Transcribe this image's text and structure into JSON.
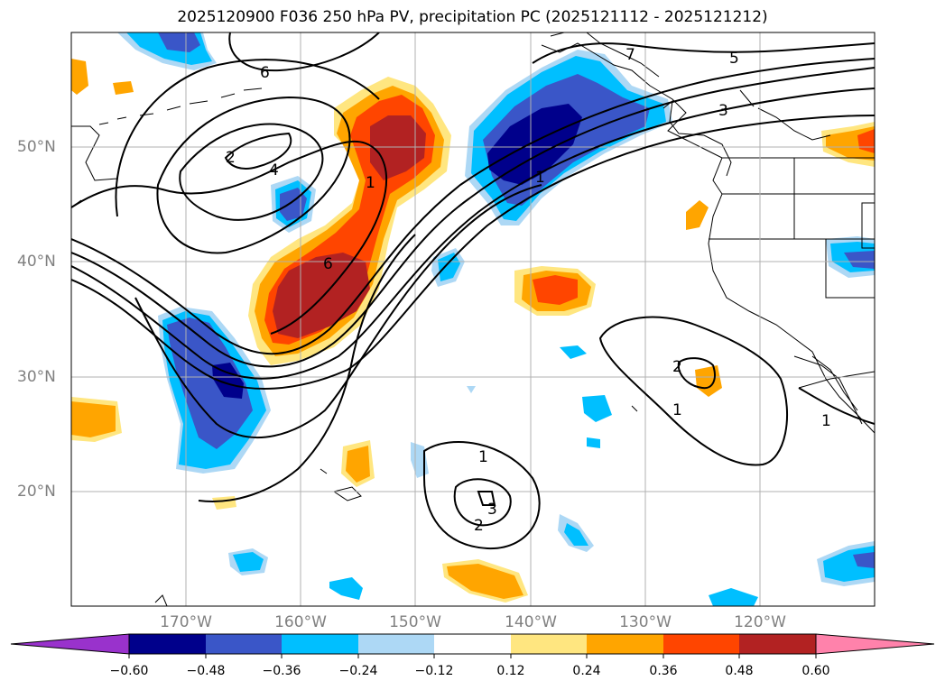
{
  "title": "2025120900 F036 250 hPa PV, precipitation PC (2025121112 - 2025121212)",
  "lat_labels": [
    "50°N",
    "40°N",
    "30°N",
    "20°N"
  ],
  "lon_labels": [
    "170°W",
    "160°W",
    "150°W",
    "140°W",
    "130°W",
    "120°W"
  ],
  "contour_labels": [
    "6",
    "7",
    "5",
    "3",
    "4",
    "1",
    "6",
    "2",
    "1",
    "2",
    "1",
    "1",
    "3",
    "2",
    "1"
  ],
  "colorbar": {
    "tick_labels": [
      "−0.60",
      "−0.48",
      "−0.36",
      "−0.24",
      "−0.12",
      "0.12",
      "0.24",
      "0.36",
      "0.48",
      "0.60"
    ],
    "colors": [
      "#9932cc",
      "#00008b",
      "#3a56c8",
      "#00bfff",
      "#add8f5",
      "#ffffff",
      "#ffe680",
      "#ffa500",
      "#ff4500",
      "#b22222",
      "#ff82ab"
    ]
  }
}
